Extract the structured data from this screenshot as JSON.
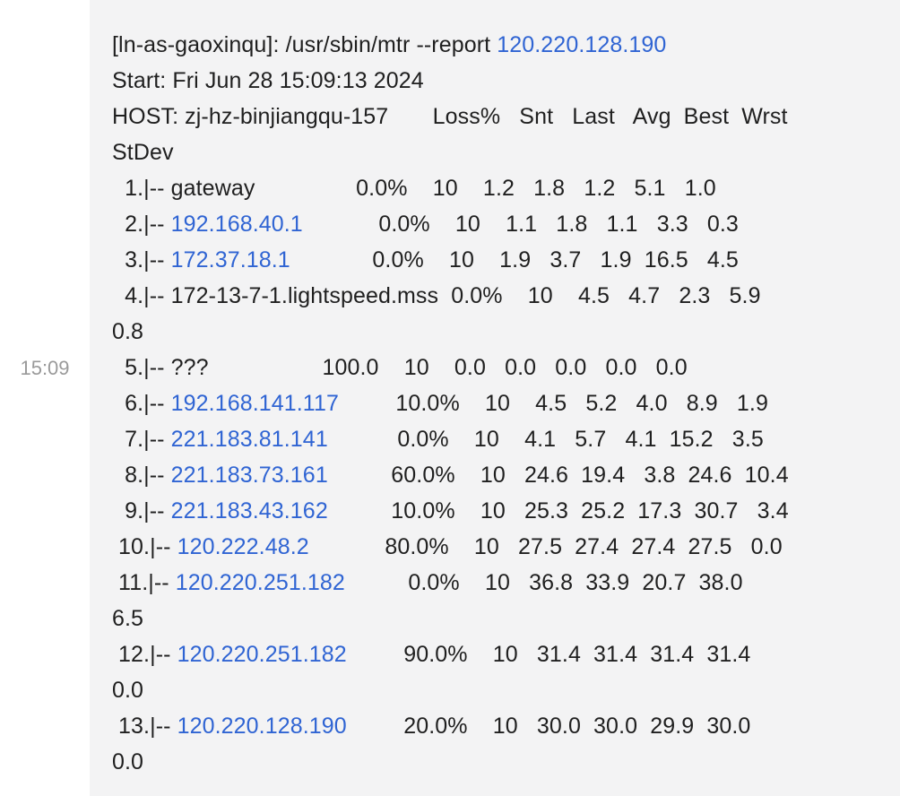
{
  "timestamp": "15:09",
  "message": {
    "lines": [
      [
        {
          "t": "[ln-as-gaoxinqu]: /usr/sbin/mtr --report "
        },
        {
          "t": "120.220.128.190",
          "link": true
        }
      ],
      [
        {
          "t": "Start: Fri Jun 28 15:09:13 2024"
        }
      ],
      [
        {
          "t": "HOST: zj-hz-binjiangqu-157       Loss%   Snt   Last   Avg  Best  Wrst"
        }
      ],
      [
        {
          "t": "StDev"
        }
      ],
      [
        {
          "t": "  1.|-- gateway                0.0%    10    1.2   1.8   1.2   5.1   1.0"
        }
      ],
      [
        {
          "t": "  2.|-- "
        },
        {
          "t": "192.168.40.1",
          "link": true
        },
        {
          "t": "            0.0%    10    1.1   1.8   1.1   3.3   0.3"
        }
      ],
      [
        {
          "t": "  3.|-- "
        },
        {
          "t": "172.37.18.1",
          "link": true
        },
        {
          "t": "             0.0%    10    1.9   3.7   1.9  16.5   4.5"
        }
      ],
      [
        {
          "t": "  4.|-- 172-13-7-1.lightspeed.mss  0.0%    10    4.5   4.7   2.3   5.9"
        }
      ],
      [
        {
          "t": "0.8"
        }
      ],
      [
        {
          "t": "  5.|-- ???                  100.0    10    0.0   0.0   0.0   0.0   0.0"
        }
      ],
      [
        {
          "t": "  6.|-- "
        },
        {
          "t": "192.168.141.117",
          "link": true
        },
        {
          "t": "         10.0%    10    4.5   5.2   4.0   8.9   1.9"
        }
      ],
      [
        {
          "t": "  7.|-- "
        },
        {
          "t": "221.183.81.141",
          "link": true
        },
        {
          "t": "           0.0%    10    4.1   5.7   4.1  15.2   3.5"
        }
      ],
      [
        {
          "t": "  8.|-- "
        },
        {
          "t": "221.183.73.161",
          "link": true
        },
        {
          "t": "          60.0%    10   24.6  19.4   3.8  24.6  10.4"
        }
      ],
      [
        {
          "t": "  9.|-- "
        },
        {
          "t": "221.183.43.162",
          "link": true
        },
        {
          "t": "          10.0%    10   25.3  25.2  17.3  30.7   3.4"
        }
      ],
      [
        {
          "t": " 10.|-- "
        },
        {
          "t": "120.222.48.2",
          "link": true
        },
        {
          "t": "            80.0%    10   27.5  27.4  27.4  27.5   0.0"
        }
      ],
      [
        {
          "t": " 11.|-- "
        },
        {
          "t": "120.220.251.182",
          "link": true
        },
        {
          "t": "          0.0%    10   36.8  33.9  20.7  38.0"
        }
      ],
      [
        {
          "t": "6.5"
        }
      ],
      [
        {
          "t": " 12.|-- "
        },
        {
          "t": "120.220.251.182",
          "link": true
        },
        {
          "t": "         90.0%    10   31.4  31.4  31.4  31.4"
        }
      ],
      [
        {
          "t": "0.0"
        }
      ],
      [
        {
          "t": " 13.|-- "
        },
        {
          "t": "120.220.128.190",
          "link": true
        },
        {
          "t": "         20.0%    10   30.0  30.0  29.9  30.0"
        }
      ],
      [
        {
          "t": "0.0"
        }
      ]
    ]
  },
  "colors": {
    "link": "#2f64d3",
    "bubble_bg": "#f3f3f4",
    "timestamp": "#9a9a9a",
    "text": "#1f1f1f"
  }
}
